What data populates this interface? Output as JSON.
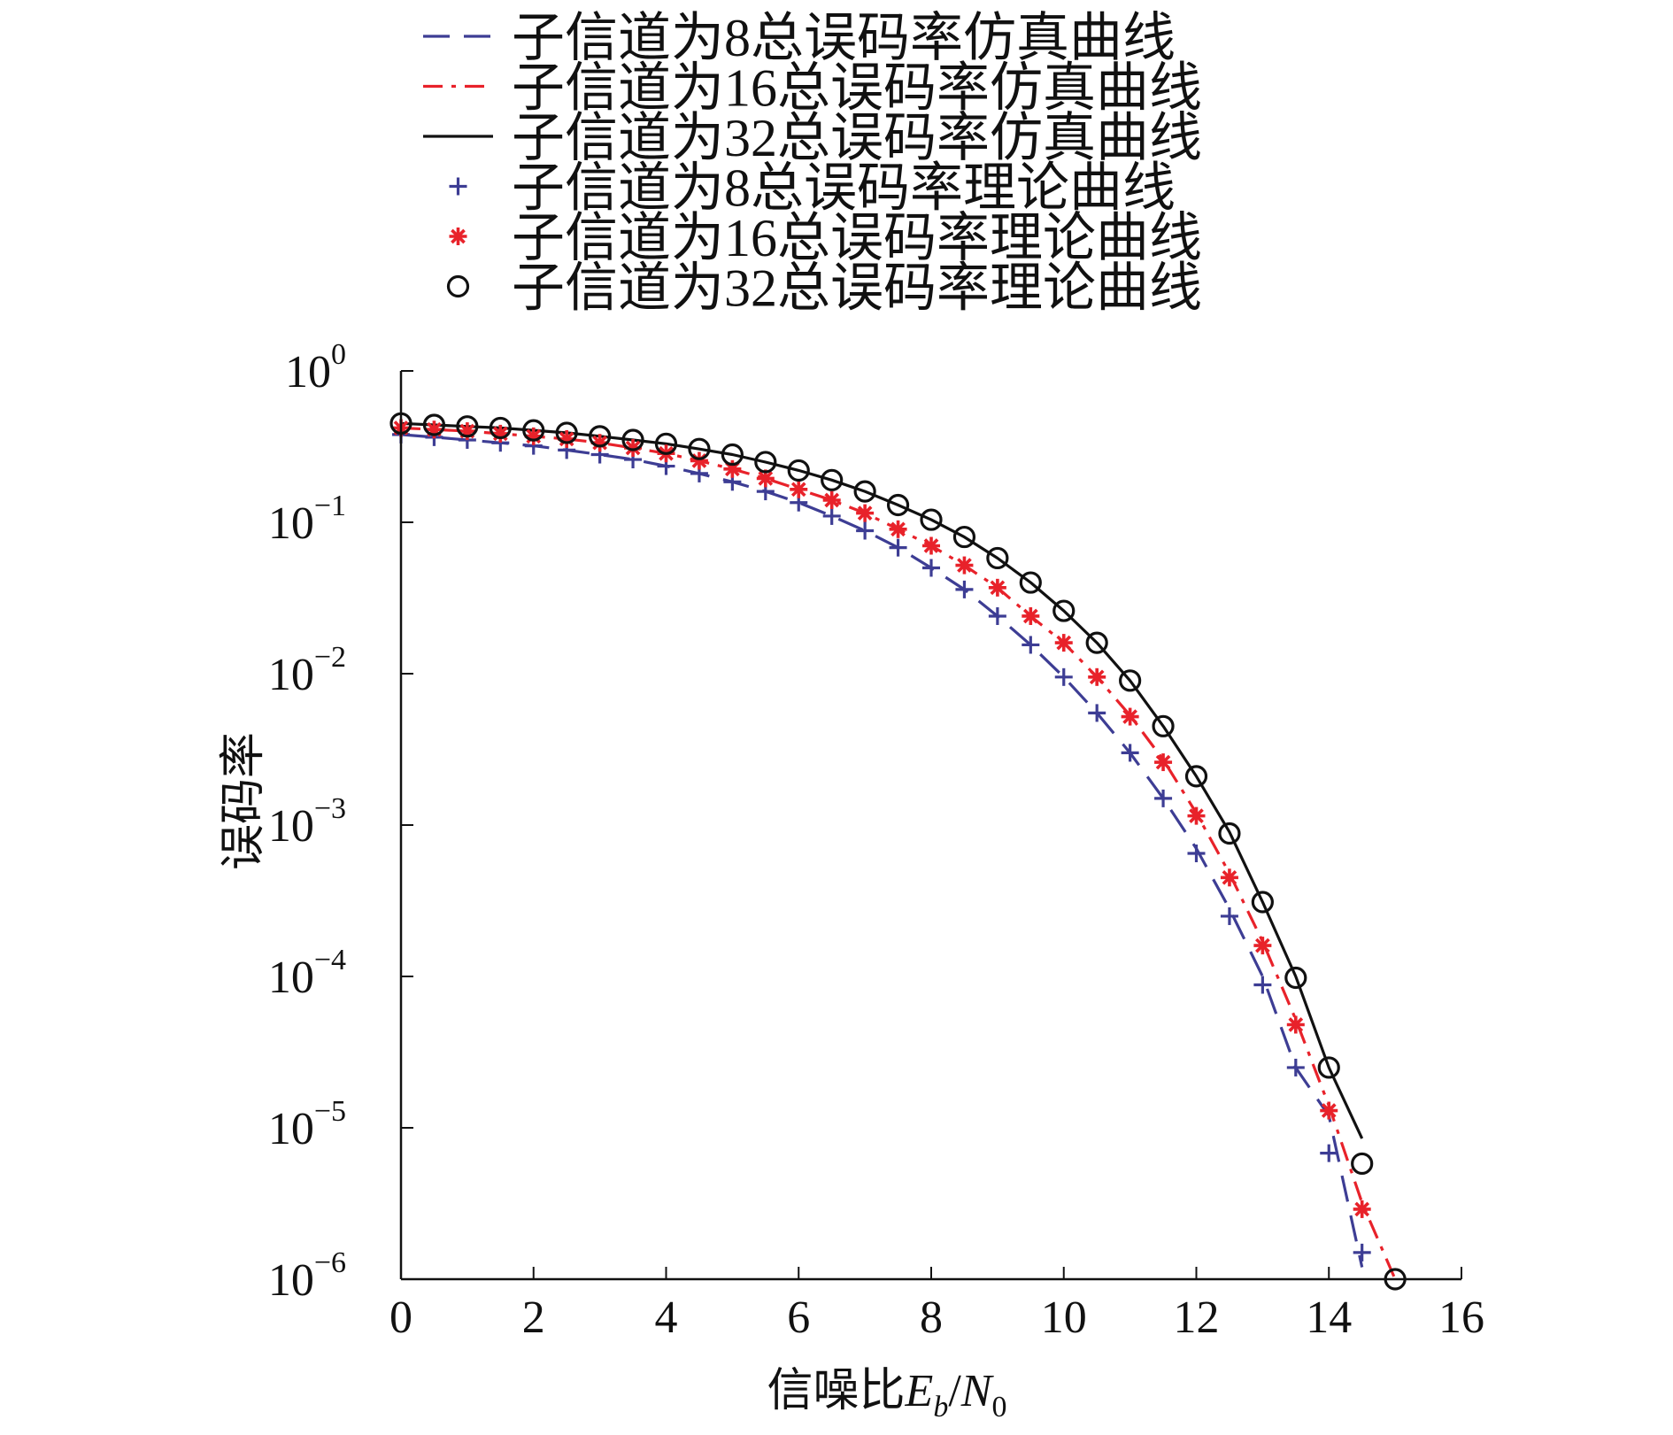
{
  "colors": {
    "series8": "#3d3d94",
    "series16": "#e8222a",
    "series32": "#111111",
    "axis": "#111111"
  },
  "chart_data": {
    "type": "line",
    "xlabel": "信噪比",
    "xlabel_math": {
      "e": "E",
      "e_sub": "b",
      "slash": "/",
      "n": "N",
      "n_sub": "0"
    },
    "ylabel": "误码率",
    "xlim": [
      0,
      16
    ],
    "ylim": [
      1e-06,
      1
    ],
    "yscale": "log",
    "grid": false,
    "legend_position": "top",
    "x_ticks": [
      "0",
      "2",
      "4",
      "6",
      "8",
      "10",
      "12",
      "14",
      "16"
    ],
    "y_ticks": [
      {
        "base": "10",
        "exp": "0"
      },
      {
        "base": "10",
        "exp": "−1"
      },
      {
        "base": "10",
        "exp": "−2"
      },
      {
        "base": "10",
        "exp": "−3"
      },
      {
        "base": "10",
        "exp": "−4"
      },
      {
        "base": "10",
        "exp": "−5"
      },
      {
        "base": "10",
        "exp": "−6"
      }
    ],
    "series": [
      {
        "name": "子信道为8总误码率仿真曲线",
        "kind": "line",
        "style": "dashed",
        "color": "#3d3d94",
        "x": [
          0,
          0.5,
          1,
          1.5,
          2,
          2.5,
          3,
          3.5,
          4,
          4.5,
          5,
          5.5,
          6,
          6.5,
          7,
          7.5,
          8,
          8.5,
          9,
          9.5,
          10,
          10.5,
          11,
          11.5,
          12,
          12.5,
          13,
          13.5,
          14,
          14.5
        ],
        "y": [
          0.38,
          0.365,
          0.35,
          0.335,
          0.32,
          0.3,
          0.28,
          0.26,
          0.235,
          0.21,
          0.185,
          0.16,
          0.135,
          0.11,
          0.088,
          0.068,
          0.05,
          0.036,
          0.024,
          0.0155,
          0.0095,
          0.0055,
          0.003,
          0.0015,
          0.0007,
          0.00028,
          0.0001,
          2.5e-05,
          1.2e-05,
          1.2e-06
        ]
      },
      {
        "name": "子信道为16总误码率仿真曲线",
        "kind": "line",
        "style": "dash-dot",
        "color": "#e8222a",
        "x": [
          0,
          0.5,
          1,
          1.5,
          2,
          2.5,
          3,
          3.5,
          4,
          4.5,
          5,
          5.5,
          6,
          6.5,
          7,
          7.5,
          8,
          8.5,
          9,
          9.5,
          10,
          10.5,
          11,
          11.5,
          12,
          12.5,
          13,
          13.5,
          14,
          14.5,
          15
        ],
        "y": [
          0.42,
          0.41,
          0.4,
          0.385,
          0.37,
          0.355,
          0.335,
          0.31,
          0.285,
          0.255,
          0.225,
          0.195,
          0.165,
          0.14,
          0.115,
          0.09,
          0.07,
          0.052,
          0.037,
          0.024,
          0.016,
          0.0095,
          0.0053,
          0.0027,
          0.0012,
          0.00048,
          0.00017,
          5.2e-05,
          1.4e-05,
          3.2e-06,
          9e-07
        ]
      },
      {
        "name": "子信道为32总误码率仿真曲线",
        "kind": "line",
        "style": "solid",
        "color": "#111111",
        "x": [
          0,
          0.5,
          1,
          1.5,
          2,
          2.5,
          3,
          3.5,
          4,
          4.5,
          5,
          5.5,
          6,
          6.5,
          7,
          7.5,
          8,
          8.5,
          9,
          9.5,
          10,
          10.5,
          11,
          11.5,
          12,
          12.5,
          13,
          13.5,
          14,
          14.5
        ],
        "y": [
          0.45,
          0.44,
          0.43,
          0.42,
          0.405,
          0.39,
          0.37,
          0.35,
          0.33,
          0.305,
          0.28,
          0.25,
          0.22,
          0.19,
          0.16,
          0.13,
          0.104,
          0.08,
          0.058,
          0.04,
          0.026,
          0.016,
          0.009,
          0.0045,
          0.0021,
          0.0009,
          0.00031,
          0.0001,
          2.5e-05,
          8.5e-06
        ]
      },
      {
        "name": "子信道为8总误码率理论曲线",
        "kind": "marker",
        "marker": "plus",
        "color": "#3d3d94",
        "x": [
          0,
          0.5,
          1,
          1.5,
          2,
          2.5,
          3,
          3.5,
          4,
          4.5,
          5,
          5.5,
          6,
          6.5,
          7,
          7.5,
          8,
          8.5,
          9,
          9.5,
          10,
          10.5,
          11,
          11.5,
          12,
          12.5,
          13,
          13.5,
          14,
          14.5
        ],
        "y": [
          0.38,
          0.365,
          0.35,
          0.335,
          0.32,
          0.3,
          0.28,
          0.26,
          0.235,
          0.21,
          0.185,
          0.16,
          0.135,
          0.11,
          0.088,
          0.068,
          0.05,
          0.036,
          0.024,
          0.0155,
          0.0095,
          0.0055,
          0.003,
          0.0015,
          0.00065,
          0.00025,
          8.8e-05,
          2.5e-05,
          6.8e-06,
          1.5e-06
        ]
      },
      {
        "name": "子信道为16总误码率理论曲线",
        "kind": "marker",
        "marker": "star",
        "color": "#e8222a",
        "x": [
          0,
          0.5,
          1,
          1.5,
          2,
          2.5,
          3,
          3.5,
          4,
          4.5,
          5,
          5.5,
          6,
          6.5,
          7,
          7.5,
          8,
          8.5,
          9,
          9.5,
          10,
          10.5,
          11,
          11.5,
          12,
          12.5,
          13,
          13.5,
          14,
          14.5
        ],
        "y": [
          0.42,
          0.41,
          0.4,
          0.385,
          0.37,
          0.355,
          0.335,
          0.31,
          0.285,
          0.255,
          0.225,
          0.195,
          0.165,
          0.14,
          0.115,
          0.09,
          0.07,
          0.052,
          0.037,
          0.024,
          0.016,
          0.0095,
          0.0052,
          0.0026,
          0.00115,
          0.00045,
          0.00016,
          4.8e-05,
          1.3e-05,
          2.9e-06
        ]
      },
      {
        "name": "子信道为32总误码率理论曲线",
        "kind": "marker",
        "marker": "circle",
        "color": "#111111",
        "x": [
          0,
          0.5,
          1,
          1.5,
          2,
          2.5,
          3,
          3.5,
          4,
          4.5,
          5,
          5.5,
          6,
          6.5,
          7,
          7.5,
          8,
          8.5,
          9,
          9.5,
          10,
          10.5,
          11,
          11.5,
          12,
          12.5,
          13,
          13.5,
          14,
          14.5,
          15
        ],
        "y": [
          0.45,
          0.44,
          0.43,
          0.42,
          0.405,
          0.39,
          0.37,
          0.35,
          0.33,
          0.305,
          0.28,
          0.25,
          0.22,
          0.19,
          0.16,
          0.13,
          0.104,
          0.08,
          0.058,
          0.04,
          0.026,
          0.016,
          0.009,
          0.0045,
          0.0021,
          0.00088,
          0.00031,
          9.8e-05,
          2.5e-05,
          5.8e-06,
          1e-06
        ]
      }
    ]
  }
}
